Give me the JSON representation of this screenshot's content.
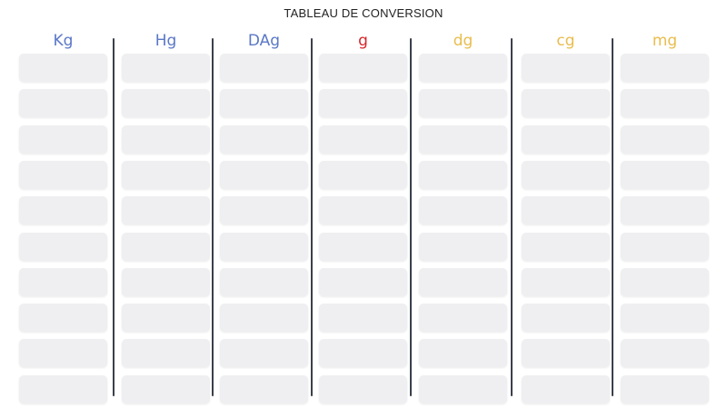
{
  "title": "TABLEAU DE CONVERSION",
  "row_count": 10,
  "units": [
    {
      "label": "Kg",
      "color": "#5b78c7"
    },
    {
      "label": "Hg",
      "color": "#5b78c7"
    },
    {
      "label": "DAg",
      "color": "#5b78c7"
    },
    {
      "label": "g",
      "color": "#d7262b"
    },
    {
      "label": "dg",
      "color": "#e9bd4e"
    },
    {
      "label": "cg",
      "color": "#e9bd4e"
    },
    {
      "label": "mg",
      "color": "#e9bd4e"
    }
  ],
  "separator_color": "#3a3f4a",
  "cell_color": "#efeff1"
}
